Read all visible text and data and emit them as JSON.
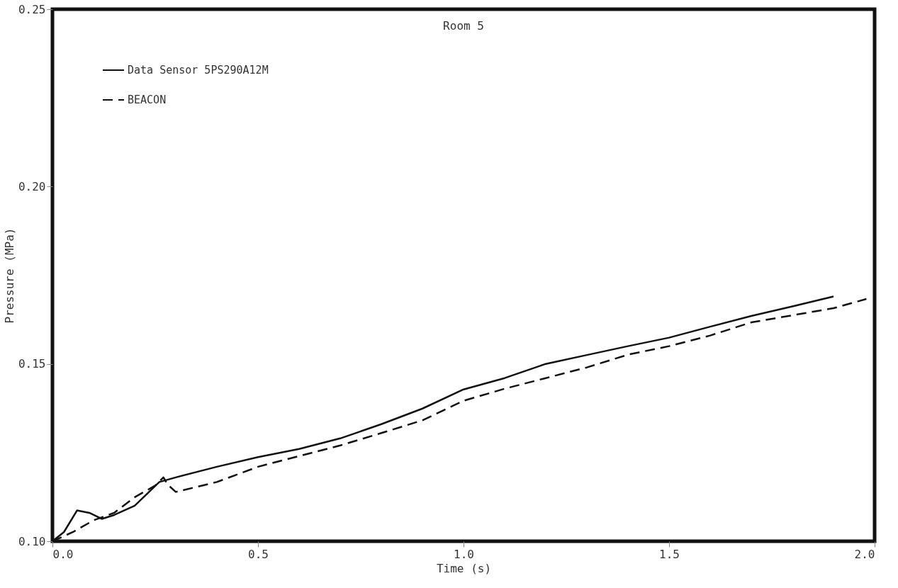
{
  "chart_data": {
    "type": "line",
    "title": "Room 5",
    "xlabel": "Time (s)",
    "ylabel": "Pressure (MPa)",
    "xlim": [
      0.0,
      2.0
    ],
    "xticks": [
      {
        "value": 0,
        "label": "0.0"
      },
      0.5,
      {
        "value": 1,
        "label": "1.0"
      },
      1.5,
      {
        "value": 2,
        "label": "2.0"
      }
    ],
    "ylim": [
      0.1,
      0.25
    ],
    "yticks": [
      {
        "value": 0.1,
        "label": "0.10"
      },
      0.15,
      {
        "value": 0.2,
        "label": "0.20"
      },
      0.25
    ],
    "grid": false,
    "legend": "top left",
    "marker": "none",
    "series": [
      {
        "name": "Data Sensor 5PS290A12M",
        "color": "#111111",
        "line_style": "solid",
        "x": [
          0,
          0.028,
          0.06,
          0.09,
          0.12,
          0.15,
          0.2,
          0.26,
          0.3,
          0.4,
          0.5,
          0.6,
          0.7,
          0.8,
          0.9,
          1.0,
          1.1,
          1.2,
          1.3,
          1.4,
          1.5,
          1.6,
          1.7,
          1.8,
          1.9
        ],
        "values": [
          0.1,
          0.1026,
          0.1087,
          0.108,
          0.1063,
          0.1074,
          0.11,
          0.1167,
          0.118,
          0.121,
          0.1237,
          0.126,
          0.129,
          0.133,
          0.1374,
          0.1428,
          0.146,
          0.15,
          0.1525,
          0.155,
          0.1574,
          0.1605,
          0.1635,
          0.1662,
          0.169
        ]
      },
      {
        "name": "BEACON",
        "color": "#111111",
        "line_style": "dashed",
        "x": [
          0,
          0.05,
          0.1,
          0.15,
          0.2,
          0.25,
          0.27,
          0.28,
          0.3,
          0.4,
          0.5,
          0.6,
          0.7,
          0.8,
          0.9,
          1.0,
          1.1,
          1.2,
          1.3,
          1.4,
          1.5,
          1.6,
          1.7,
          1.8,
          1.9,
          1.98
        ],
        "values": [
          0.1,
          0.1026,
          0.1059,
          0.108,
          0.1124,
          0.1157,
          0.118,
          0.116,
          0.1139,
          0.1167,
          0.121,
          0.124,
          0.127,
          0.1305,
          0.1341,
          0.1396,
          0.143,
          0.146,
          0.149,
          0.1526,
          0.155,
          0.158,
          0.1617,
          0.1637,
          0.1657,
          0.1683
        ]
      }
    ]
  }
}
